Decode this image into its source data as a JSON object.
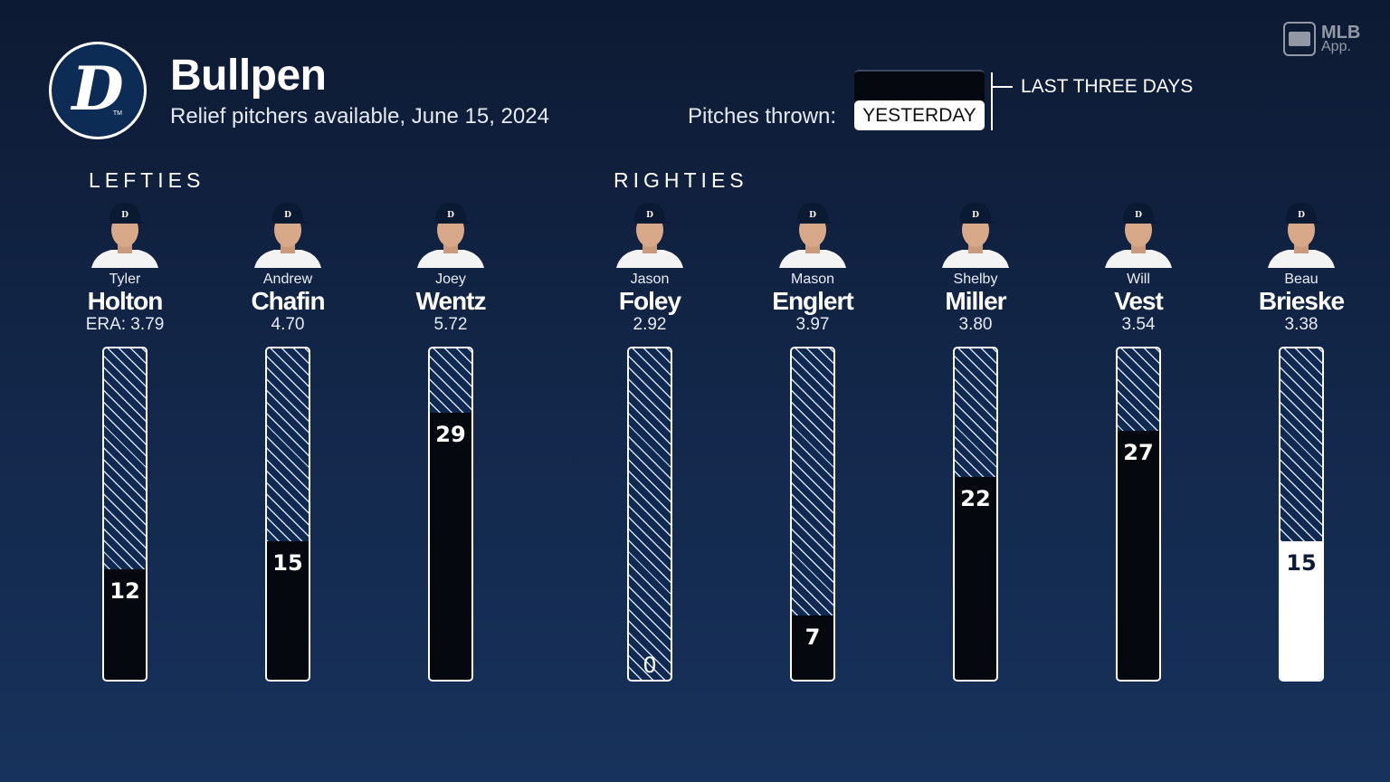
{
  "header": {
    "title": "Bullpen",
    "subtitle": "Relief pitchers available, June 15, 2024",
    "pitches_label": "Pitches thrown:",
    "toggle_selected": "YESTERDAY",
    "toggle_other": "LAST THREE DAYS",
    "logo_letter": "D",
    "logo_tm": "TM"
  },
  "brand": {
    "line1": "MLB",
    "line2": "App."
  },
  "groups": {
    "lefties": "LEFTIES",
    "righties": "RIGHTIES"
  },
  "colors": {
    "background": "#13284b",
    "bar_fill": "#05080e",
    "bar_fill_highlight": "#ffffff",
    "hatch": "#0f2a52"
  },
  "bar_max_pitches": 36,
  "players": [
    {
      "first": "Tyler",
      "last": "Holton",
      "era": "ERA: 3.79",
      "pitches": "12",
      "group": "lefties"
    },
    {
      "first": "Andrew",
      "last": "Chafin",
      "era": "4.70",
      "pitches": "15",
      "group": "lefties"
    },
    {
      "first": "Joey",
      "last": "Wentz",
      "era": "5.72",
      "pitches": "29",
      "group": "lefties"
    },
    {
      "first": "Jason",
      "last": "Foley",
      "era": "2.92",
      "pitches": "0",
      "group": "righties"
    },
    {
      "first": "Mason",
      "last": "Englert",
      "era": "3.97",
      "pitches": "7",
      "group": "righties"
    },
    {
      "first": "Shelby",
      "last": "Miller",
      "era": "3.80",
      "pitches": "22",
      "group": "righties"
    },
    {
      "first": "Will",
      "last": "Vest",
      "era": "3.54",
      "pitches": "27",
      "group": "righties"
    },
    {
      "first": "Beau",
      "last": "Brieske",
      "era": "3.38",
      "pitches": "15",
      "group": "righties",
      "highlight": true
    }
  ]
}
